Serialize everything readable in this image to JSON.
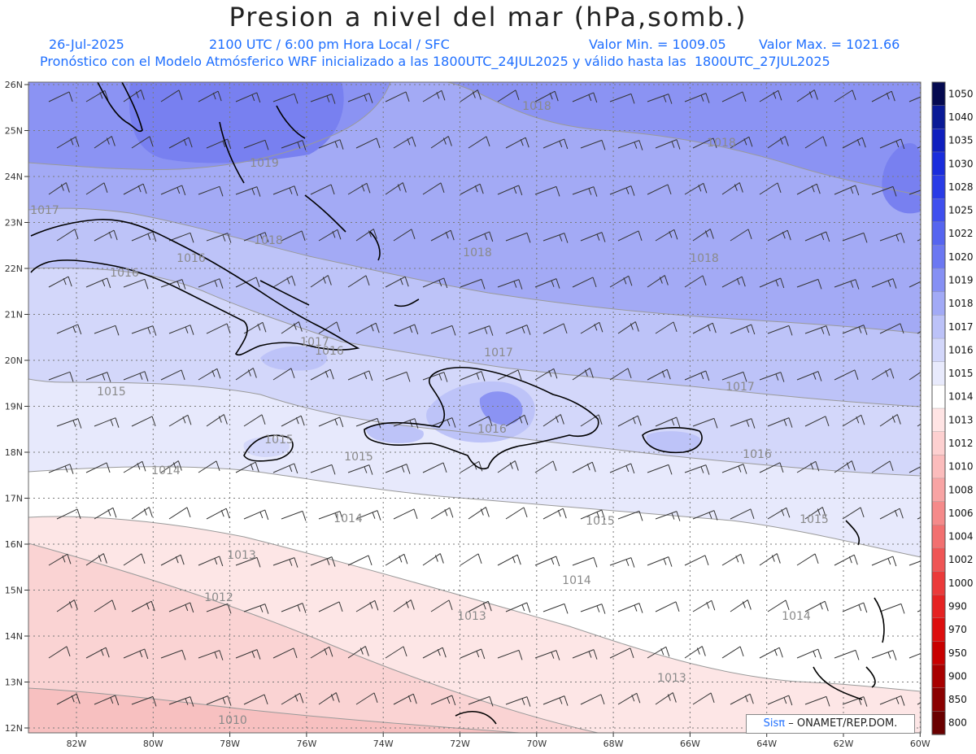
{
  "header": {
    "title": "Presion a nivel del mar (hPa,somb.)",
    "date": "26-Jul-2025",
    "time": "2100 UTC / 6:00 pm Hora Local / SFC",
    "min_label": "Valor Min. = 1009.05",
    "max_label": "Valor Max. = 1021.66",
    "description": "Pronóstico con el Modelo Atmósferico WRF inicializado a las 1800UTC_24JUL2025 y válido hasta las  1800UTC_27JUL2025"
  },
  "axes": {
    "lat_labels": [
      "26N",
      "25N",
      "24N",
      "23N",
      "22N",
      "21N",
      "20N",
      "19N",
      "18N",
      "17N",
      "16N",
      "15N",
      "14N",
      "13N",
      "12N"
    ],
    "lon_labels": [
      "82W",
      "80W",
      "78W",
      "76W",
      "74W",
      "72W",
      "70W",
      "68W",
      "66W",
      "64W",
      "62W",
      "60W"
    ]
  },
  "colorbar": {
    "levels": [
      "1050",
      "1040",
      "1035",
      "1030",
      "1028",
      "1025",
      "1022",
      "1020",
      "1019",
      "1018",
      "1017",
      "1016",
      "1015",
      "1014",
      "1013",
      "1012",
      "1010",
      "1008",
      "1006",
      "1004",
      "1002",
      "1000",
      "990",
      "970",
      "950",
      "900",
      "850",
      "800"
    ],
    "colors": [
      "#050a50",
      "#0a1a96",
      "#0f1fbe",
      "#1a2ddc",
      "#2a3ce6",
      "#3f4fee",
      "#5665f0",
      "#6c78f2",
      "#8690f4",
      "#a2aaf6",
      "#bcc2f8",
      "#d3d7fa",
      "#e8eafc",
      "#ffffff",
      "#ffe4e4",
      "#fdd0d0",
      "#fbbcbc",
      "#f8a4a4",
      "#f58a8a",
      "#f27070",
      "#ef5555",
      "#eb3a3a",
      "#e52222",
      "#dd0e0e",
      "#c80000",
      "#a80000",
      "#8a0000",
      "#6a0000"
    ]
  },
  "map_colors": {
    "p1019": "#8b93f3",
    "p1018": "#a3aaf5",
    "p1017": "#bdc3f8",
    "p1016": "#d3d7fa",
    "p1015": "#e7e9fc",
    "p1014": "#ffffff",
    "p1013": "#fde6e6",
    "p1012": "#fad3d3",
    "p1010": "#f7c0c0"
  },
  "contour_labels": [
    "1018",
    "1018",
    "1019",
    "1017",
    "1018",
    "1018",
    "1018",
    "1016",
    "1016",
    "1017",
    "1016",
    "1017",
    "1017",
    "1015",
    "1016",
    "1015",
    "1015",
    "1014",
    "1014",
    "1015",
    "1015",
    "1016",
    "1013",
    "1014",
    "1012",
    "1013",
    "1014",
    "1010",
    "1013"
  ],
  "credit": {
    "brand": "Sisπ",
    "text": "– ONAMET/REP.DOM."
  }
}
